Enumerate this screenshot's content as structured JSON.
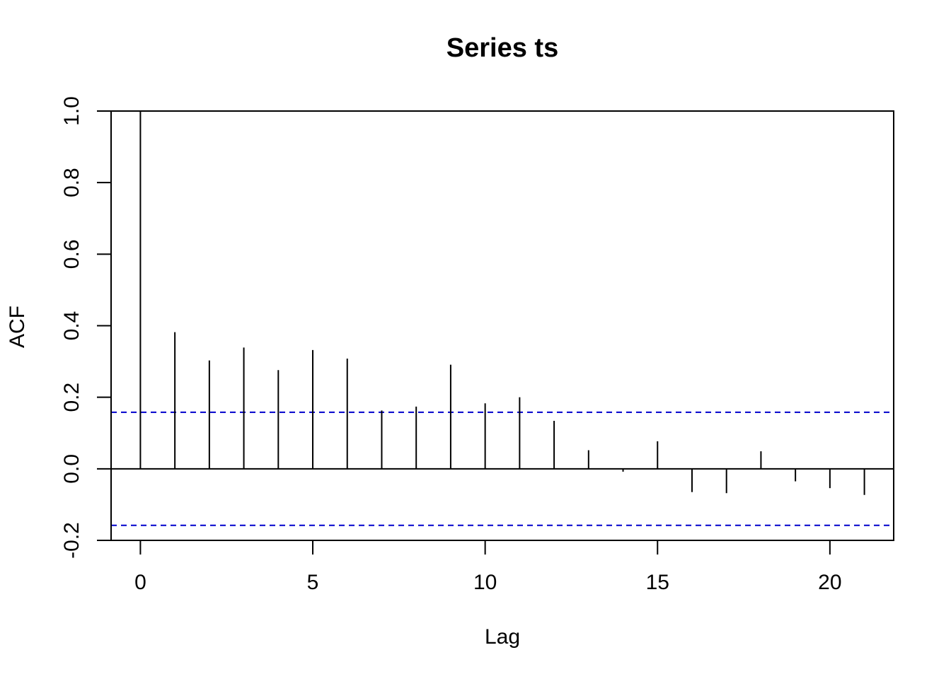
{
  "chart_data": {
    "type": "bar",
    "title": "Series  ts",
    "xlabel": "Lag",
    "ylabel": "ACF",
    "x": [
      0,
      1,
      2,
      3,
      4,
      5,
      6,
      7,
      8,
      9,
      10,
      11,
      12,
      13,
      14,
      15,
      16,
      17,
      18,
      19,
      20,
      21
    ],
    "values": [
      1.0,
      0.382,
      0.303,
      0.339,
      0.276,
      0.332,
      0.308,
      0.163,
      0.174,
      0.291,
      0.183,
      0.2,
      0.134,
      0.052,
      -0.008,
      0.077,
      -0.065,
      -0.068,
      0.049,
      -0.035,
      -0.054,
      -0.073
    ],
    "confidence_band": [
      -0.158,
      0.158
    ],
    "xlim": [
      -0.85,
      21.85
    ],
    "ylim": [
      -0.2,
      1.0
    ],
    "xticks": [
      "0",
      "5",
      "10",
      "15",
      "20"
    ],
    "yticks": [
      "-0.2",
      "0.0",
      "0.2",
      "0.4",
      "0.6",
      "0.8",
      "1.0"
    ],
    "colors": {
      "bars": "#000000",
      "confidence_band": "#0000cc"
    },
    "grid": false,
    "legend": "none"
  }
}
